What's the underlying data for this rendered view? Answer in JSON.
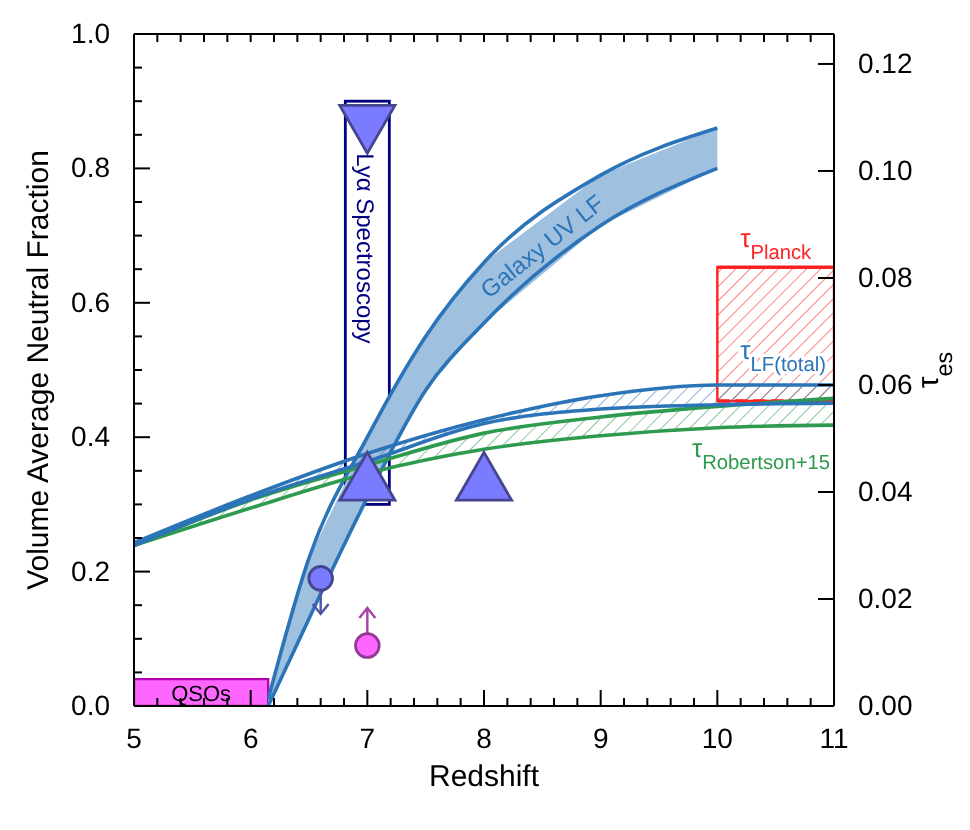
{
  "chart_data": {
    "type": "line",
    "xlabel": "Redshift",
    "ylabel": "Volume Average Neutral Fraction",
    "y2label": "τ$_{es}$",
    "xlim": [
      5,
      11
    ],
    "xticks": [
      5,
      {
        "value": 5.2,
        "label": null
      },
      {
        "value": 5.4,
        "label": null
      },
      {
        "value": 5.6,
        "label": null
      },
      {
        "value": 5.8,
        "label": null
      },
      6,
      {
        "value": 6.2,
        "label": null
      },
      {
        "value": 6.4,
        "label": null
      },
      {
        "value": 6.6,
        "label": null
      },
      {
        "value": 6.8,
        "label": null
      },
      7,
      {
        "value": 7.2,
        "label": null
      },
      {
        "value": 7.4,
        "label": null
      },
      {
        "value": 7.6,
        "label": null
      },
      {
        "value": 7.8,
        "label": null
      },
      8,
      {
        "value": 8.2,
        "label": null
      },
      {
        "value": 8.4,
        "label": null
      },
      {
        "value": 8.6,
        "label": null
      },
      {
        "value": 8.8,
        "label": null
      },
      9,
      {
        "value": 9.2,
        "label": null
      },
      {
        "value": 9.4,
        "label": null
      },
      {
        "value": 9.6,
        "label": null
      },
      {
        "value": 9.8,
        "label": null
      },
      10,
      {
        "value": 10.2,
        "label": null
      },
      {
        "value": 10.4,
        "label": null
      },
      {
        "value": 10.6,
        "label": null
      },
      {
        "value": 10.8,
        "label": null
      },
      11
    ],
    "ylim": [
      0,
      1
    ],
    "yticks": [
      {
        "value": 0,
        "label": "0.0"
      },
      {
        "value": 0.05,
        "label": null
      },
      {
        "value": 0.1,
        "label": null
      },
      {
        "value": 0.15,
        "label": null
      },
      0.2,
      {
        "value": 0.25,
        "label": null
      },
      {
        "value": 0.3,
        "label": null
      },
      {
        "value": 0.35,
        "label": null
      },
      0.4,
      {
        "value": 0.45,
        "label": null
      },
      {
        "value": 0.5,
        "label": null
      },
      {
        "value": 0.55,
        "label": null
      },
      0.6,
      {
        "value": 0.65,
        "label": null
      },
      {
        "value": 0.7,
        "label": null
      },
      {
        "value": 0.75,
        "label": null
      },
      0.8,
      {
        "value": 0.85,
        "label": null
      },
      {
        "value": 0.9,
        "label": null
      },
      {
        "value": 0.95,
        "label": null
      },
      {
        "value": 1,
        "label": "1.0"
      }
    ],
    "y2lim": [
      0,
      0.1256
    ],
    "y2ticks": [
      {
        "value": 0,
        "label": "0.00"
      },
      {
        "value": 0.02,
        "label": "0.02"
      },
      {
        "value": 0.04,
        "label": "0.04"
      },
      {
        "value": 0.06,
        "label": "0.06"
      },
      {
        "value": 0.08,
        "label": "0.08"
      },
      {
        "value": 0.1,
        "label": "0.10"
      },
      {
        "value": 0.12,
        "label": "0.12"
      }
    ],
    "grid": false,
    "legend": false,
    "series": [
      {
        "type": "area",
        "name": "QSOs",
        "color": "#ff66ff",
        "x": [
          5,
          6.15
        ],
        "values": [
          0.04,
          0.04
        ]
      },
      {
        "type": "bar",
        "name": "Lyα Spectroscopy",
        "color": "#000080",
        "x": [
          7
        ],
        "base": [
          0.3
        ],
        "values": [
          0.6
        ]
      },
      {
        "name": "Galaxy UV LF",
        "color": "#2b74b8",
        "x": [
          6.15,
          6.5,
          7,
          7.5,
          8,
          9,
          10
        ],
        "values": [
          0.01,
          0.22,
          0.4,
          0.55,
          0.66,
          0.79,
          0.86
        ]
      },
      {
        "color": "#2b74b8",
        "x": [
          6.15,
          6.5,
          7,
          7.5,
          8,
          9,
          10
        ],
        "values": [
          0,
          0.13,
          0.31,
          0.47,
          0.57,
          0.715,
          0.8
        ]
      },
      {
        "name": "τ$_{Planck}$",
        "color": "#ff2020",
        "axis": "y2",
        "x": [
          10,
          11
        ],
        "values": [
          0.082,
          0.082
        ]
      },
      {
        "color": "#ff2020",
        "axis": "y2",
        "line_style": "dashed",
        "x": [
          10,
          11
        ],
        "values": [
          0.057,
          0.057
        ]
      },
      {
        "name": "τ$_{Robertson+15}$",
        "color": "#2e9a4f",
        "axis": "y2",
        "x": [
          5,
          6,
          7,
          8,
          9,
          10,
          11
        ],
        "values": [
          0.03,
          0.0385,
          0.045,
          0.051,
          0.054,
          0.056,
          0.0575
        ]
      },
      {
        "color": "#2e9a4f",
        "axis": "y2",
        "x": [
          5,
          6,
          7,
          8,
          9,
          10,
          11
        ],
        "values": [
          0.03,
          0.037,
          0.0435,
          0.048,
          0.0505,
          0.052,
          0.0525
        ]
      },
      {
        "name": "τ$_{LF(total)}$",
        "color": "#2b74b8",
        "axis": "y2",
        "x": [
          5,
          6,
          7,
          8,
          9,
          10,
          11
        ],
        "values": [
          0.0305,
          0.0393,
          0.0472,
          0.0535,
          0.058,
          0.06,
          0.06
        ]
      },
      {
        "color": "#2b74b8",
        "axis": "y2",
        "x": [
          5,
          6,
          7,
          8,
          9,
          10,
          11
        ],
        "values": [
          0.03,
          0.0387,
          0.0457,
          0.0528,
          0.0555,
          0.0563,
          0.0566
        ]
      },
      {
        "type": "scatter",
        "marker": "triangle",
        "color": "#7b7bff",
        "x": [
          7,
          8
        ],
        "values": [
          0.33,
          0.33
        ]
      },
      {
        "type": "scatter",
        "marker": "triangle-down",
        "color": "#7b7bff",
        "x": [
          7
        ],
        "values": [
          0.87
        ]
      },
      {
        "type": "scatter",
        "marker": "circle",
        "color": "#7b7bff",
        "x": [
          6.6
        ],
        "values": [
          0.19
        ],
        "errors": [
          [
            0.137,
            0.19
          ]
        ]
      },
      {
        "type": "scatter",
        "marker": "circle",
        "color": "#ff66ff",
        "x": [
          7
        ],
        "values": [
          0.09
        ],
        "errors": [
          [
            0.09,
            0.146
          ]
        ]
      }
    ]
  }
}
